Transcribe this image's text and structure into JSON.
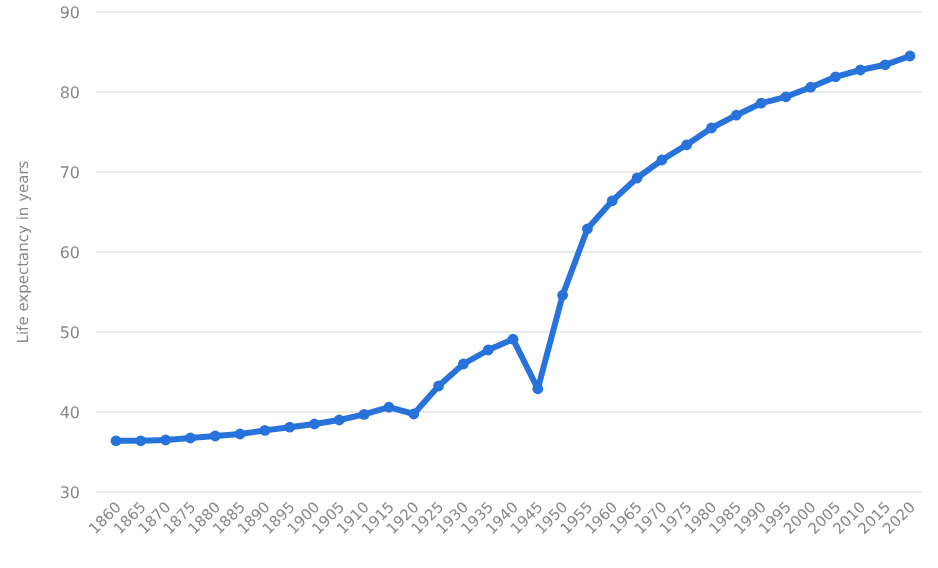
{
  "chart_data": {
    "type": "line",
    "ylabel": "Life expectancy in years",
    "categories": [
      "1860",
      "1865",
      "1870",
      "1875",
      "1880",
      "1885",
      "1890",
      "1895",
      "1900",
      "1905",
      "1910",
      "1915",
      "1920",
      "1925",
      "1930",
      "1935",
      "1940",
      "1945",
      "1950",
      "1955",
      "1960",
      "1965",
      "1970",
      "1975",
      "1980",
      "1985",
      "1990",
      "1995",
      "2000",
      "2005",
      "2010",
      "2015",
      "2020"
    ],
    "series": [
      {
        "color": "#2872dc",
        "values": [
          36.4,
          36.4,
          36.5,
          36.75,
          37,
          37.25,
          37.7,
          38.1,
          38.5,
          39,
          39.7,
          40.6,
          39.75,
          43.25,
          46,
          47.75,
          49.1,
          42.9,
          54.6,
          62.9,
          66.4,
          69.25,
          71.5,
          73.4,
          75.5,
          77.1,
          78.6,
          79.4,
          80.6,
          81.9,
          82.75,
          83.4,
          84.5
        ]
      }
    ],
    "ylim": [
      30,
      90
    ],
    "yticks": [
      30,
      40,
      50,
      60,
      70,
      80,
      90
    ],
    "grid": "y",
    "marker": "circle",
    "line_style": "solid"
  }
}
